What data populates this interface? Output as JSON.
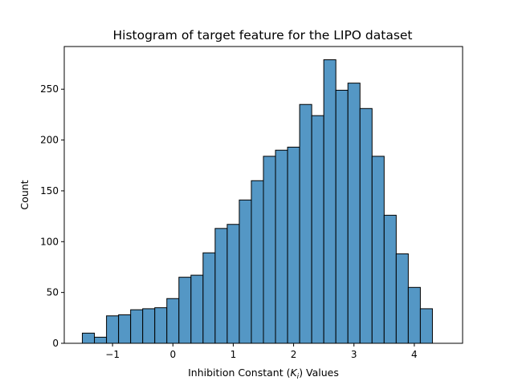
{
  "chart_data": {
    "type": "bar",
    "title": "Histogram of target feature for the LIPO dataset",
    "xlabel_parts": [
      "Inhibition Constant (",
      "K",
      "i",
      ") Values"
    ],
    "ylabel": "Count",
    "bin_start": -1.5,
    "bin_width": 0.2,
    "values": [
      10,
      6,
      27,
      28,
      33,
      34,
      35,
      44,
      65,
      67,
      89,
      113,
      117,
      141,
      160,
      184,
      190,
      193,
      235,
      224,
      279,
      249,
      256,
      231,
      184,
      126,
      88,
      55,
      34
    ],
    "xlim": [
      -1.8,
      4.8
    ],
    "ylim": [
      0,
      292
    ],
    "xticks": [
      -1,
      0,
      1,
      2,
      3,
      4
    ],
    "xtick_labels": [
      "−1",
      "0",
      "1",
      "2",
      "3",
      "4"
    ],
    "yticks": [
      0,
      50,
      100,
      150,
      200,
      250
    ],
    "ytick_labels": [
      "0",
      "50",
      "100",
      "150",
      "200",
      "250"
    ],
    "bar_color": "#5497c5",
    "edge_color": "#000000",
    "grid": false,
    "legend": "none"
  }
}
